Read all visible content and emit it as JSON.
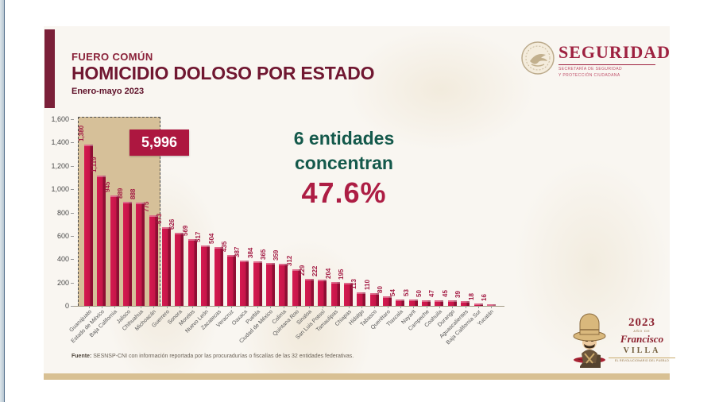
{
  "header": {
    "kicker": "FUERO COMÚN",
    "title": "HOMICIDIO DOLOSO POR ESTADO",
    "subtitle": "Enero-mayo 2023"
  },
  "seguridad_logo": {
    "name": "SEGURIDAD",
    "sub1": "SECRETARÍA DE SEGURIDAD",
    "sub2": "Y PROTECCIÓN CIUDADANA"
  },
  "annotation": {
    "line1": "6 entidades",
    "line2": "concentran",
    "pct": "47.6%"
  },
  "source": {
    "prefix": "Fuente:",
    "text": " SESNSP-CNI con información reportada por las procuradurías o fiscalías de las 32 entidades federativas."
  },
  "villa_logo": {
    "year": "2023",
    "ano_de": "AÑO DE",
    "name": "Francisco",
    "surname": "VILLA",
    "tagline": "EL REVOLUCIONARIO DEL PUEBLO"
  },
  "colors": {
    "bar": "#c51548",
    "bar_shadow": "#8e0e33",
    "highlight_bg": "#d6c099",
    "accent_maroon": "#7b2039",
    "title_maroon": "#701731",
    "annotation_green": "#14594b",
    "annotation_crimson": "#ad1d44",
    "gold_bar": "#d8c093"
  },
  "chart_data": {
    "type": "bar",
    "title": "HOMICIDIO DOLOSO POR ESTADO",
    "subtitle": "Enero-mayo 2023",
    "categories": [
      "Guanajuato",
      "Estado de México",
      "Baja California",
      "Jalisco",
      "Chihuahua",
      "Michoacán",
      "Guerrero",
      "Sonora",
      "Morelos",
      "Nuevo León",
      "Zacatecas",
      "Veracruz",
      "Oaxaca",
      "Puebla",
      "Ciudad de México",
      "Colima",
      "Quintana Roo",
      "Sinaloa",
      "San Luis Potosí",
      "Tamaulipas",
      "Chiapas",
      "Hidalgo",
      "Tabasco",
      "Querétaro",
      "Tlaxcala",
      "Nayarit",
      "Campeche",
      "Coahuila",
      "Durango",
      "Aguascalientes",
      "Baja California Sur",
      "Yucatán"
    ],
    "values": [
      1380,
      1119,
      945,
      889,
      888,
      775,
      673,
      626,
      569,
      517,
      504,
      435,
      387,
      384,
      365,
      359,
      312,
      229,
      222,
      204,
      195,
      113,
      110,
      80,
      54,
      53,
      50,
      47,
      45,
      39,
      18,
      16
    ],
    "value_labels": [
      "1,380",
      "1,119",
      "945",
      "889",
      "888",
      "775",
      "673",
      "626",
      "569",
      "517",
      "504",
      "435",
      "387",
      "384",
      "365",
      "359",
      "312",
      "229",
      "222",
      "204",
      "195",
      "113",
      "110",
      "80",
      "54",
      "53",
      "50",
      "47",
      "45",
      "39",
      "18",
      "16"
    ],
    "ylim": [
      0,
      1600
    ],
    "ytick_labels": [
      "1,600",
      "1,400",
      "1,200",
      "1,000",
      "800",
      "600",
      "400",
      "200",
      "0"
    ],
    "grid": false,
    "legend": false,
    "highlight_count": 6,
    "highlight_total": "5,996"
  }
}
